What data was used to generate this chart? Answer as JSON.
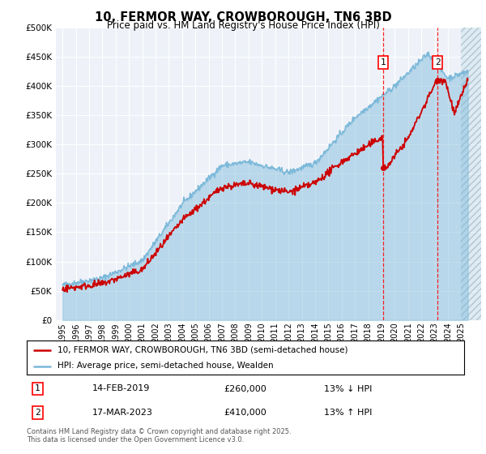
{
  "title": "10, FERMOR WAY, CROWBOROUGH, TN6 3BD",
  "subtitle": "Price paid vs. HM Land Registry's House Price Index (HPI)",
  "ylim": [
    0,
    500000
  ],
  "yticks": [
    0,
    50000,
    100000,
    150000,
    200000,
    250000,
    300000,
    350000,
    400000,
    450000,
    500000
  ],
  "ytick_labels": [
    "£0",
    "£50K",
    "£100K",
    "£150K",
    "£200K",
    "£250K",
    "£300K",
    "£350K",
    "£400K",
    "£450K",
    "£500K"
  ],
  "hpi_color": "#7ab8d9",
  "price_color": "#cc0000",
  "annotation1_date": "14-FEB-2019",
  "annotation1_price": "£260,000",
  "annotation1_hpi": "13% ↓ HPI",
  "annotation1_year": 2019.12,
  "annotation1_value": 260000,
  "annotation2_date": "17-MAR-2023",
  "annotation2_price": "£410,000",
  "annotation2_hpi": "13% ↑ HPI",
  "annotation2_year": 2023.21,
  "annotation2_value": 410000,
  "legend_line1": "10, FERMOR WAY, CROWBOROUGH, TN6 3BD (semi-detached house)",
  "legend_line2": "HPI: Average price, semi-detached house, Wealden",
  "footer": "Contains HM Land Registry data © Crown copyright and database right 2025.\nThis data is licensed under the Open Government Licence v3.0.",
  "bg_color": "#ffffff",
  "plot_bg_color": "#eef2f8",
  "hatch_start": 2025.0,
  "xlim_start": 1994.5,
  "xlim_end": 2026.5,
  "xtick_years": [
    1995,
    1996,
    1997,
    1998,
    1999,
    2000,
    2001,
    2002,
    2003,
    2004,
    2005,
    2006,
    2007,
    2008,
    2009,
    2010,
    2011,
    2012,
    2013,
    2014,
    2015,
    2016,
    2017,
    2018,
    2019,
    2020,
    2021,
    2022,
    2023,
    2024,
    2025
  ]
}
